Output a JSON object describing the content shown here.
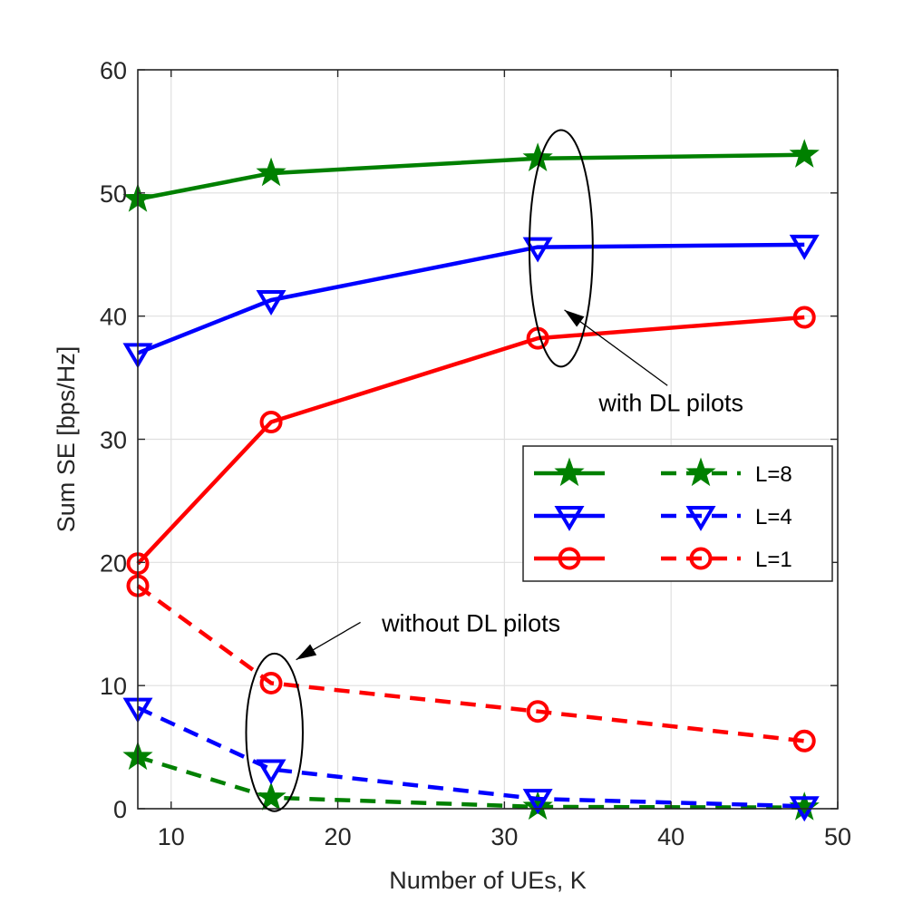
{
  "chart_data": {
    "type": "line",
    "title": "",
    "xlabel": "Number of UEs, K",
    "ylabel": "Sum SE [bps/Hz]",
    "xlim": [
      8,
      50
    ],
    "ylim": [
      0,
      60
    ],
    "xticks": [
      10,
      20,
      30,
      40,
      50
    ],
    "yticks": [
      0,
      10,
      20,
      30,
      40,
      50,
      60
    ],
    "grid": true,
    "legend_position": "right",
    "x": [
      8,
      16,
      32,
      48
    ],
    "series": [
      {
        "name": "L=8 with DL pilots",
        "legend_label": "",
        "group": "with",
        "color": "#008000",
        "dash": "solid",
        "marker": "star",
        "values": [
          49.5,
          51.6,
          52.8,
          53.1
        ]
      },
      {
        "name": "L=4 with DL pilots",
        "legend_label": "",
        "group": "with",
        "color": "#0000ff",
        "dash": "solid",
        "marker": "triangle-down",
        "values": [
          37.0,
          41.3,
          45.6,
          45.8
        ]
      },
      {
        "name": "L=1 with DL pilots",
        "legend_label": "",
        "group": "with",
        "color": "#ff0000",
        "dash": "solid",
        "marker": "circle",
        "values": [
          19.9,
          31.4,
          38.2,
          39.9
        ]
      },
      {
        "name": "L=8 without DL pilots",
        "legend_label": "L=8",
        "group": "without",
        "color": "#008000",
        "dash": "dashed",
        "marker": "star",
        "values": [
          4.2,
          0.9,
          0.15,
          0.1
        ]
      },
      {
        "name": "L=4 without DL pilots",
        "legend_label": "L=4",
        "group": "without",
        "color": "#0000ff",
        "dash": "dashed",
        "marker": "triangle-down",
        "values": [
          8.2,
          3.2,
          0.8,
          0.2
        ]
      },
      {
        "name": "L=1 without DL pilots",
        "legend_label": "L=1",
        "group": "without",
        "color": "#ff0000",
        "dash": "dashed",
        "marker": "circle",
        "values": [
          18.1,
          10.2,
          7.9,
          5.5
        ]
      }
    ],
    "annotations": [
      {
        "text": "with DL pilots",
        "ellipse_center": [
          33.4,
          45.5
        ],
        "ellipse_radii": [
          1.9,
          9.6
        ],
        "text_anchor": [
          40,
          32.3
        ],
        "arrow_to": [
          33.6,
          40.5
        ]
      },
      {
        "text": "without DL pilots",
        "ellipse_center": [
          16.2,
          6.2
        ],
        "ellipse_radii": [
          1.7,
          6.4
        ],
        "text_anchor": [
          28,
          14.4
        ],
        "arrow_to": [
          17.5,
          12.1
        ]
      }
    ]
  }
}
